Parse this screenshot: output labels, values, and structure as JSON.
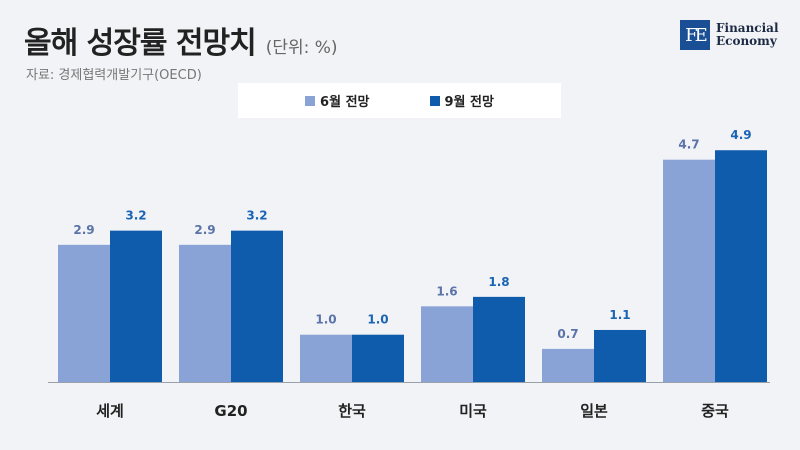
{
  "header": {
    "title": "올해 성장률 전망치",
    "unit": "(단위: %)",
    "source": "자료: 경제협력개발기구(OECD)"
  },
  "logo": {
    "mark": "FE",
    "line1": "Financial",
    "line2": "Economy"
  },
  "colors": {
    "series1": "#8aa3d6",
    "series2": "#0f5cad",
    "label1": "#5a73a8",
    "label2": "#1a64b4"
  },
  "chart_data": {
    "type": "bar",
    "categories": [
      "세계",
      "G20",
      "한국",
      "미국",
      "일본",
      "중국"
    ],
    "series": [
      {
        "name": "6월 전망",
        "values": [
          2.9,
          2.9,
          1.0,
          1.6,
          0.7,
          4.7
        ]
      },
      {
        "name": "9월 전망",
        "values": [
          3.2,
          3.2,
          1.0,
          1.8,
          1.1,
          4.9
        ]
      }
    ],
    "value_labels": [
      [
        "2.9",
        "2.9",
        "1.0",
        "1.6",
        "0.7",
        "4.7"
      ],
      [
        "3.2",
        "3.2",
        "1.0",
        "1.8",
        "1.1",
        "4.9"
      ]
    ],
    "ylim": [
      0,
      5.5
    ],
    "grid": false,
    "legend_position": "top-center"
  }
}
